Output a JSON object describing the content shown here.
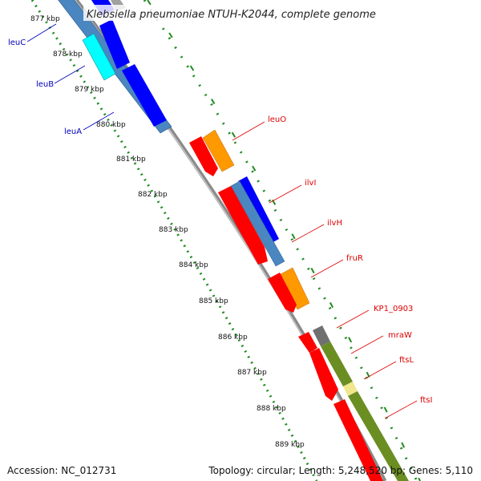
{
  "title": "Klebsiella pneumoniae NTUH-K2044, complete genome",
  "footer": {
    "accession": "Accession: NC_012731",
    "summary": "Topology: circular; Length: 5,248,520 bp; Genes: 5,110"
  },
  "colors": {
    "red": "#ff0000",
    "orange": "#ff9900",
    "blue": "#0000ff",
    "steel": "#4a86c0",
    "cyan": "#00ffff",
    "olive": "#6b8e23",
    "khaki": "#f0e68c",
    "gray": "#707070",
    "backbone": "#8a8a8a",
    "tick": "#228b22",
    "left_label": "#0000bb",
    "right_label": "#dd0000"
  },
  "scale_labels": [
    "877 kbp",
    "878 kbp",
    "879 kbp",
    "880 kbp",
    "881 kbp",
    "882 kbp",
    "883 kbp",
    "884 kbp",
    "885 kbp",
    "886 kbp",
    "887 kbp",
    "888 kbp",
    "889 kbp"
  ],
  "left_genes": [
    "leuC",
    "leuB",
    "leuA"
  ],
  "right_genes": [
    "leuO",
    "ilvI",
    "ilvH",
    "fruR",
    "KP1_0903",
    "mraW",
    "ftsL",
    "ftsI"
  ]
}
